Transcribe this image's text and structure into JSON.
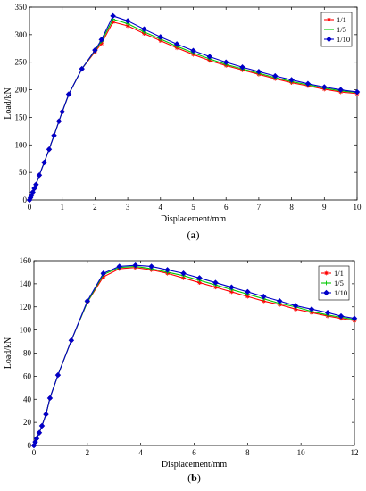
{
  "chart_data": [
    {
      "type": "line",
      "caption_label": "a",
      "xlabel": "Displacement/mm",
      "ylabel": "Load/kN",
      "xlim": [
        0,
        10
      ],
      "ylim": [
        0,
        350
      ],
      "xticks": [
        0,
        1,
        2,
        3,
        4,
        5,
        6,
        7,
        8,
        9,
        10
      ],
      "yticks": [
        0,
        50,
        100,
        150,
        200,
        250,
        300,
        350
      ],
      "legend_position": "top-right",
      "series": [
        {
          "name": "1/1",
          "color": "#ff0000",
          "marker": "star",
          "x": [
            0,
            0.03,
            0.06,
            0.1,
            0.15,
            0.2,
            0.3,
            0.45,
            0.6,
            0.75,
            0.9,
            1.0,
            1.2,
            1.6,
            2.0,
            2.2,
            2.55,
            3.0,
            3.5,
            4.0,
            4.5,
            5.0,
            5.5,
            6.0,
            6.5,
            7.0,
            7.5,
            8.0,
            8.5,
            9.0,
            9.5,
            10.0
          ],
          "y": [
            0,
            4,
            8,
            14,
            21,
            28,
            45,
            68,
            92,
            117,
            143,
            160,
            192,
            238,
            269,
            284,
            323,
            316,
            302,
            289,
            276,
            264,
            253,
            244,
            236,
            228,
            220,
            213,
            207,
            201,
            196,
            193
          ]
        },
        {
          "name": "1/5",
          "color": "#00c800",
          "marker": "cross",
          "x": [
            0,
            0.03,
            0.06,
            0.1,
            0.15,
            0.2,
            0.3,
            0.45,
            0.6,
            0.75,
            0.9,
            1.0,
            1.2,
            1.6,
            2.0,
            2.2,
            2.55,
            3.0,
            3.5,
            4.0,
            4.5,
            5.0,
            5.5,
            6.0,
            6.5,
            7.0,
            7.5,
            8.0,
            8.5,
            9.0,
            9.5,
            10.0
          ],
          "y": [
            0,
            4,
            8,
            14,
            21,
            28,
            45,
            68,
            92,
            117,
            143,
            160,
            192,
            238,
            271,
            288,
            328,
            320,
            305,
            292,
            279,
            267,
            256,
            246,
            238,
            230,
            222,
            215,
            209,
            203,
            198,
            195
          ]
        },
        {
          "name": "1/10",
          "color": "#0000c8",
          "marker": "diamond",
          "x": [
            0,
            0.03,
            0.06,
            0.1,
            0.15,
            0.2,
            0.3,
            0.45,
            0.6,
            0.75,
            0.9,
            1.0,
            1.2,
            1.6,
            2.0,
            2.2,
            2.55,
            3.0,
            3.5,
            4.0,
            4.5,
            5.0,
            5.5,
            6.0,
            6.5,
            7.0,
            7.5,
            8.0,
            8.5,
            9.0,
            9.5,
            10.0
          ],
          "y": [
            0,
            4,
            8,
            14,
            21,
            28,
            45,
            68,
            92,
            117,
            143,
            160,
            192,
            238,
            272,
            291,
            334,
            325,
            310,
            296,
            283,
            271,
            260,
            250,
            241,
            233,
            225,
            218,
            211,
            205,
            200,
            196
          ]
        }
      ]
    },
    {
      "type": "line",
      "caption_label": "b",
      "xlabel": "Displacement/mm",
      "ylabel": "Load/kN",
      "xlim": [
        0,
        12
      ],
      "ylim": [
        0,
        160
      ],
      "xticks": [
        0,
        2,
        4,
        6,
        8,
        10,
        12
      ],
      "yticks": [
        0,
        20,
        40,
        60,
        80,
        100,
        120,
        140,
        160
      ],
      "legend_position": "top-right",
      "series": [
        {
          "name": "1/1",
          "color": "#ff0000",
          "marker": "star",
          "x": [
            0,
            0.05,
            0.1,
            0.2,
            0.3,
            0.45,
            0.6,
            0.9,
            1.4,
            2.0,
            2.6,
            3.2,
            3.8,
            4.4,
            5.0,
            5.6,
            6.2,
            6.8,
            7.4,
            8.0,
            8.6,
            9.2,
            9.8,
            10.4,
            11.0,
            11.5,
            12.0
          ],
          "y": [
            0,
            3,
            6,
            11,
            17,
            27,
            41,
            61,
            91,
            124,
            146,
            153,
            154,
            152,
            149,
            145,
            141,
            137,
            133,
            129,
            125,
            122,
            118,
            115,
            112,
            110,
            108
          ]
        },
        {
          "name": "1/5",
          "color": "#00c800",
          "marker": "cross",
          "x": [
            0,
            0.05,
            0.1,
            0.2,
            0.3,
            0.45,
            0.6,
            0.9,
            1.4,
            2.0,
            2.6,
            3.2,
            3.8,
            4.4,
            5.0,
            5.6,
            6.2,
            6.8,
            7.4,
            8.0,
            8.6,
            9.2,
            9.8,
            10.4,
            11.0,
            11.5,
            12.0
          ],
          "y": [
            0,
            3,
            6,
            11,
            17,
            27,
            41,
            61,
            91,
            124,
            148,
            154,
            155,
            153,
            150,
            147,
            143,
            139,
            135,
            131,
            127,
            123,
            120,
            116,
            113,
            111,
            109
          ]
        },
        {
          "name": "1/10",
          "color": "#0000c8",
          "marker": "diamond",
          "x": [
            0,
            0.05,
            0.1,
            0.2,
            0.3,
            0.45,
            0.6,
            0.9,
            1.4,
            2.0,
            2.6,
            3.2,
            3.8,
            4.4,
            5.0,
            5.6,
            6.2,
            6.8,
            7.4,
            8.0,
            8.6,
            9.2,
            9.8,
            10.4,
            11.0,
            11.5,
            12.0
          ],
          "y": [
            0,
            3,
            6,
            11,
            17,
            27,
            41,
            61,
            91,
            125,
            149,
            155,
            156,
            155,
            152,
            149,
            145,
            141,
            137,
            133,
            129,
            125,
            121,
            118,
            115,
            112,
            110
          ]
        }
      ]
    }
  ]
}
